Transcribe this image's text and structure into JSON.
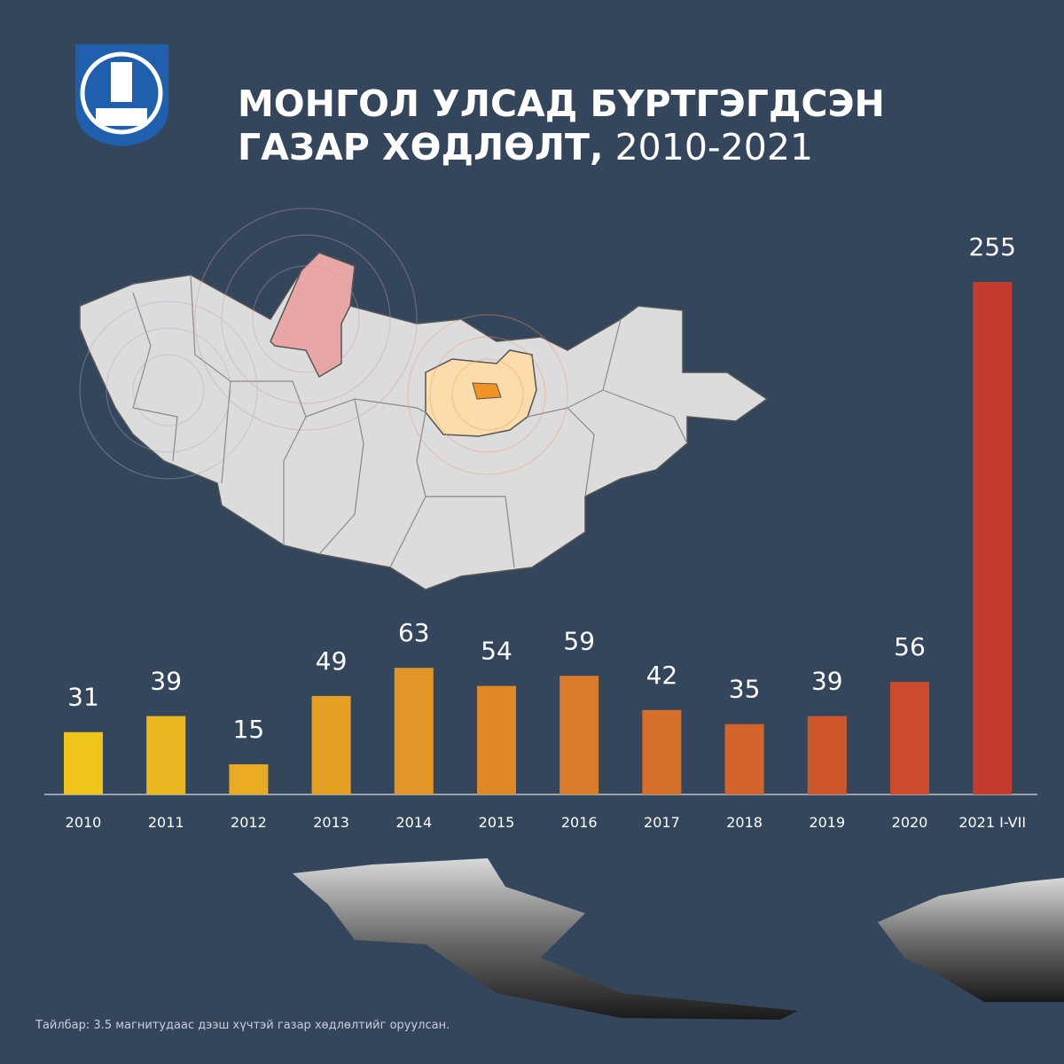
{
  "chart_data": {
    "type": "bar",
    "title_bold_line1": "МОНГОЛ УЛСАД БҮРТГЭГДСЭН",
    "title_bold_line2": "ГАЗАР ХӨДЛӨЛТ,",
    "title_years": "2010-2021",
    "categories": [
      "2010",
      "2011",
      "2012",
      "2013",
      "2014",
      "2015",
      "2016",
      "2017",
      "2018",
      "2019",
      "2020",
      "2021 I-VII"
    ],
    "values": [
      31,
      39,
      15,
      49,
      63,
      54,
      59,
      42,
      35,
      39,
      56,
      255
    ],
    "colors": [
      "#f0c419",
      "#ecb821",
      "#e9ab22",
      "#e6a024",
      "#e29426",
      "#de8827",
      "#d97b28",
      "#d56f29",
      "#d2632a",
      "#cf572b",
      "#cb4b2c",
      "#c43c2d"
    ],
    "note": "Тайлбар: 3.5 магнитудаас дээш хүчтэй газар хөдлөлтийг оруулсан."
  }
}
